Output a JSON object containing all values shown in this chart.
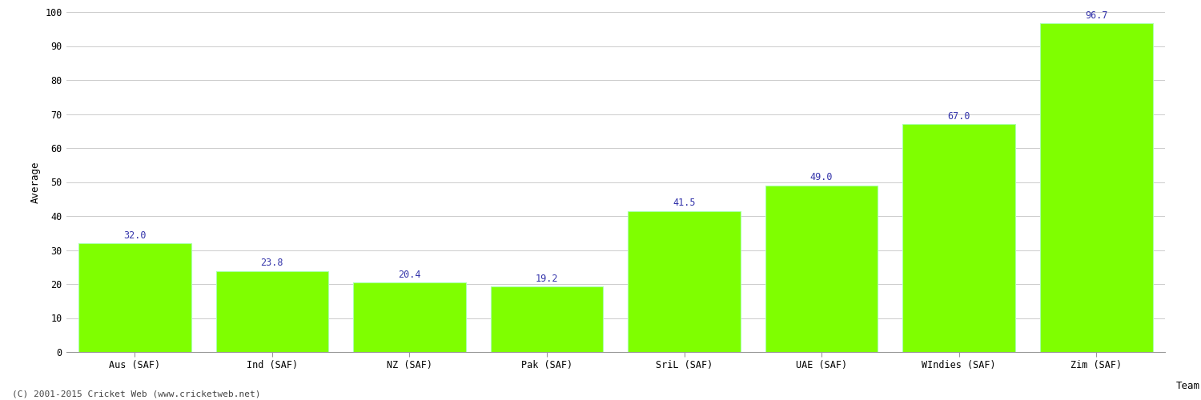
{
  "categories": [
    "Aus (SAF)",
    "Ind (SAF)",
    "NZ (SAF)",
    "Pak (SAF)",
    "SriL (SAF)",
    "UAE (SAF)",
    "WIndies (SAF)",
    "Zim (SAF)"
  ],
  "values": [
    32.0,
    23.8,
    20.4,
    19.2,
    41.5,
    49.0,
    67.0,
    96.7
  ],
  "bar_color": "#7fff00",
  "bar_edge_color": "#aaffaa",
  "ylabel": "Average",
  "ylim": [
    0,
    100
  ],
  "yticks": [
    0,
    10,
    20,
    30,
    40,
    50,
    60,
    70,
    80,
    90,
    100
  ],
  "annotation_color": "#3333aa",
  "annotation_fontsize": 8.5,
  "axis_label_fontsize": 9,
  "tick_label_fontsize": 8.5,
  "grid_color": "#cccccc",
  "background_color": "#ffffff",
  "footer_text": "(C) 2001-2015 Cricket Web (www.cricketweb.net)",
  "footer_fontsize": 8,
  "footer_color": "#444444",
  "bar_width": 0.82
}
